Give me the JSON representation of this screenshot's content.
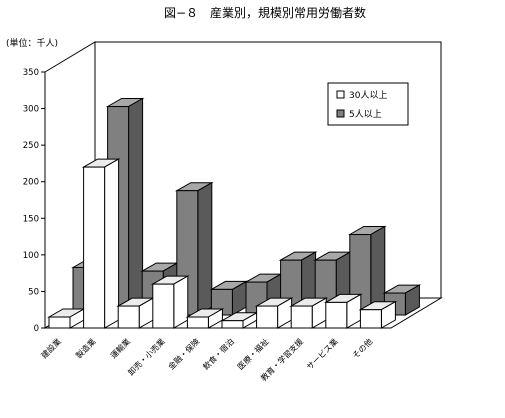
{
  "chart_data": {
    "type": "bar",
    "title": "図−８　産業別，規模別常用労働者数",
    "unit_label": "(単位：千人)",
    "categories": [
      "建設業",
      "製造業",
      "運輸業",
      "卸売・小売業",
      "金融・保険",
      "飲食・宿泊",
      "医療・福祉",
      "教育・学習支援",
      "サービス業",
      "その他"
    ],
    "series": [
      {
        "name": "30人以上",
        "color": "#ffffff",
        "values": [
          15,
          220,
          30,
          60,
          15,
          10,
          30,
          30,
          35,
          25
        ]
      },
      {
        "name": "5人以上",
        "color": "#808080",
        "values": [
          65,
          285,
          60,
          170,
          35,
          45,
          75,
          75,
          110,
          30
        ]
      }
    ],
    "ylim": [
      0,
      350
    ],
    "yticks": [
      0,
      50,
      100,
      150,
      200,
      250,
      300,
      350
    ],
    "legend_position": "top-right",
    "grid": false
  }
}
